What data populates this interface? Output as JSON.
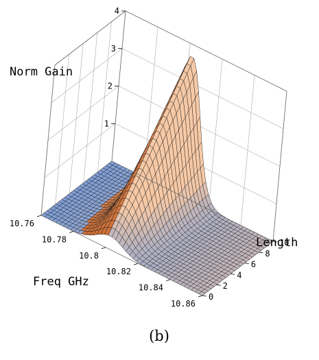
{
  "chart_data": {
    "type": "surface",
    "x_axis": {
      "label": "Freq GHz",
      "ticks": [
        "10.76",
        "10.78",
        "10.8",
        "10.82",
        "10.84",
        "10.86"
      ],
      "range": [
        10.76,
        10.86
      ]
    },
    "y_axis": {
      "label": "Length",
      "ticks": [
        "0",
        "2",
        "4",
        "6",
        "8",
        "10"
      ],
      "range": [
        0,
        10
      ]
    },
    "z_axis": {
      "label": "Norm Gain",
      "ticks": [
        "1",
        "2",
        "3",
        "4"
      ],
      "range": [
        0,
        4
      ]
    },
    "peak": {
      "freq_center_ghz": 10.802,
      "gain_at_length_0": 0.35,
      "gain_at_length_10": 3.7
    },
    "box_visible": true,
    "grid_on_back_faces": true,
    "colors": {
      "low": "#7f9fd8",
      "high": "#f6c9a6",
      "front_face": "#f4c8a8",
      "back_face": "#c45a1c",
      "mesh_line": "#1c1c1c",
      "box": "#6b6b6b"
    }
  },
  "caption": "(b)"
}
